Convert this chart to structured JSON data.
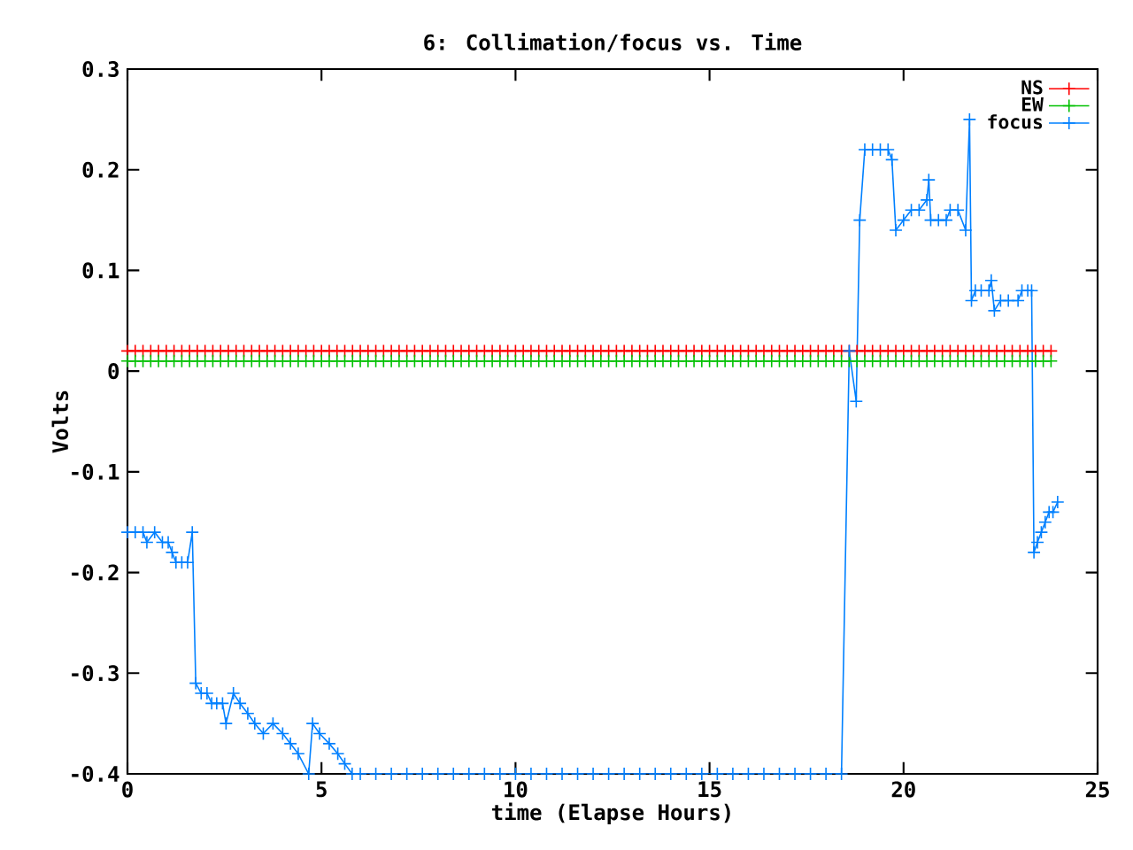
{
  "chart_data": {
    "type": "line",
    "title": "6: Collimation/focus vs. Time",
    "xlabel": "time (Elapse Hours)",
    "ylabel": "Volts",
    "xlim": [
      0,
      25
    ],
    "ylim": [
      -0.4,
      0.3
    ],
    "xticks": [
      0,
      5,
      10,
      15,
      20,
      25
    ],
    "yticks": [
      -0.4,
      -0.3,
      -0.2,
      -0.1,
      0,
      0.1,
      0.2,
      0.3
    ],
    "legend": "top right",
    "line_style": "solid",
    "series": [
      {
        "name": "NS",
        "color": "#ff0000",
        "marker": "cross",
        "x": [
          0,
          0.2,
          0.4,
          0.6,
          0.8,
          1,
          1.2,
          1.4,
          1.6,
          1.8,
          2,
          2.2,
          2.4,
          2.6,
          2.8,
          3,
          3.2,
          3.4,
          3.6,
          3.8,
          4,
          4.2,
          4.4,
          4.6,
          4.8,
          5,
          5.2,
          5.4,
          5.6,
          5.8,
          6,
          6.2,
          6.4,
          6.6,
          6.8,
          7,
          7.2,
          7.4,
          7.6,
          7.8,
          8,
          8.2,
          8.4,
          8.6,
          8.8,
          9,
          9.2,
          9.4,
          9.6,
          9.8,
          10,
          10.2,
          10.4,
          10.6,
          10.8,
          11,
          11.2,
          11.4,
          11.6,
          11.8,
          12,
          12.2,
          12.4,
          12.6,
          12.8,
          13,
          13.2,
          13.4,
          13.6,
          13.8,
          14,
          14.2,
          14.4,
          14.6,
          14.8,
          15,
          15.2,
          15.4,
          15.6,
          15.8,
          16,
          16.2,
          16.4,
          16.6,
          16.8,
          17,
          17.2,
          17.4,
          17.6,
          17.8,
          18,
          18.2,
          18.4,
          18.6,
          18.8,
          19,
          19.2,
          19.4,
          19.6,
          19.8,
          20,
          20.2,
          20.4,
          20.6,
          20.8,
          21,
          21.2,
          21.4,
          21.6,
          21.8,
          22,
          22.2,
          22.4,
          22.6,
          22.8,
          23,
          23.2,
          23.4,
          23.6,
          23.8
        ],
        "values": [
          0.02,
          0.02,
          0.02,
          0.02,
          0.02,
          0.02,
          0.02,
          0.02,
          0.02,
          0.02,
          0.02,
          0.02,
          0.02,
          0.02,
          0.02,
          0.02,
          0.02,
          0.02,
          0.02,
          0.02,
          0.02,
          0.02,
          0.02,
          0.02,
          0.02,
          0.02,
          0.02,
          0.02,
          0.02,
          0.02,
          0.02,
          0.02,
          0.02,
          0.02,
          0.02,
          0.02,
          0.02,
          0.02,
          0.02,
          0.02,
          0.02,
          0.02,
          0.02,
          0.02,
          0.02,
          0.02,
          0.02,
          0.02,
          0.02,
          0.02,
          0.02,
          0.02,
          0.02,
          0.02,
          0.02,
          0.02,
          0.02,
          0.02,
          0.02,
          0.02,
          0.02,
          0.02,
          0.02,
          0.02,
          0.02,
          0.02,
          0.02,
          0.02,
          0.02,
          0.02,
          0.02,
          0.02,
          0.02,
          0.02,
          0.02,
          0.02,
          0.02,
          0.02,
          0.02,
          0.02,
          0.02,
          0.02,
          0.02,
          0.02,
          0.02,
          0.02,
          0.02,
          0.02,
          0.02,
          0.02,
          0.02,
          0.02,
          0.02,
          0.02,
          0.02,
          0.02,
          0.02,
          0.02,
          0.02,
          0.02,
          0.02,
          0.02,
          0.02,
          0.02,
          0.02,
          0.02,
          0.02,
          0.02,
          0.02,
          0.02,
          0.02,
          0.02,
          0.02,
          0.02,
          0.02,
          0.02,
          0.02,
          0.02,
          0.02,
          0.02
        ]
      },
      {
        "name": "EW",
        "color": "#00c000",
        "marker": "cross",
        "x": [
          0,
          0.2,
          0.4,
          0.6,
          0.8,
          1,
          1.2,
          1.4,
          1.6,
          1.8,
          2,
          2.2,
          2.4,
          2.6,
          2.8,
          3,
          3.2,
          3.4,
          3.6,
          3.8,
          4,
          4.2,
          4.4,
          4.6,
          4.8,
          5,
          5.2,
          5.4,
          5.6,
          5.8,
          6,
          6.2,
          6.4,
          6.6,
          6.8,
          7,
          7.2,
          7.4,
          7.6,
          7.8,
          8,
          8.2,
          8.4,
          8.6,
          8.8,
          9,
          9.2,
          9.4,
          9.6,
          9.8,
          10,
          10.2,
          10.4,
          10.6,
          10.8,
          11,
          11.2,
          11.4,
          11.6,
          11.8,
          12,
          12.2,
          12.4,
          12.6,
          12.8,
          13,
          13.2,
          13.4,
          13.6,
          13.8,
          14,
          14.2,
          14.4,
          14.6,
          14.8,
          15,
          15.2,
          15.4,
          15.6,
          15.8,
          16,
          16.2,
          16.4,
          16.6,
          16.8,
          17,
          17.2,
          17.4,
          17.6,
          17.8,
          18,
          18.2,
          18.4,
          18.6,
          18.8,
          19,
          19.2,
          19.4,
          19.6,
          19.8,
          20,
          20.2,
          20.4,
          20.6,
          20.8,
          21,
          21.2,
          21.4,
          21.6,
          21.8,
          22,
          22.2,
          22.4,
          22.6,
          22.8,
          23,
          23.2,
          23.4,
          23.6,
          23.8
        ],
        "values": [
          0.01,
          0.01,
          0.01,
          0.01,
          0.01,
          0.01,
          0.01,
          0.01,
          0.01,
          0.01,
          0.01,
          0.01,
          0.01,
          0.01,
          0.01,
          0.01,
          0.01,
          0.01,
          0.01,
          0.01,
          0.01,
          0.01,
          0.01,
          0.01,
          0.01,
          0.01,
          0.01,
          0.01,
          0.01,
          0.01,
          0.01,
          0.01,
          0.01,
          0.01,
          0.01,
          0.01,
          0.01,
          0.01,
          0.01,
          0.01,
          0.01,
          0.01,
          0.01,
          0.01,
          0.01,
          0.01,
          0.01,
          0.01,
          0.01,
          0.01,
          0.01,
          0.01,
          0.01,
          0.01,
          0.01,
          0.01,
          0.01,
          0.01,
          0.01,
          0.01,
          0.01,
          0.01,
          0.01,
          0.01,
          0.01,
          0.01,
          0.01,
          0.01,
          0.01,
          0.01,
          0.01,
          0.01,
          0.01,
          0.01,
          0.01,
          0.01,
          0.01,
          0.01,
          0.01,
          0.01,
          0.01,
          0.01,
          0.01,
          0.01,
          0.01,
          0.01,
          0.01,
          0.01,
          0.01,
          0.01,
          0.01,
          0.01,
          0.01,
          0.01,
          0.01,
          0.01,
          0.01,
          0.01,
          0.01,
          0.01,
          0.01,
          0.01,
          0.01,
          0.01,
          0.01,
          0.01,
          0.01,
          0.01,
          0.01,
          0.01,
          0.01,
          0.01,
          0.01,
          0.01,
          0.01,
          0.01,
          0.01,
          0.01,
          0.01,
          0.01
        ]
      },
      {
        "name": "focus",
        "color": "#0080ff",
        "marker": "cross",
        "x": [
          0,
          0.2,
          0.4,
          0.5,
          0.7,
          0.9,
          1.05,
          1.15,
          1.25,
          1.4,
          1.55,
          1.67,
          1.76,
          1.9,
          2.05,
          2.17,
          2.3,
          2.45,
          2.54,
          2.73,
          2.9,
          3.1,
          3.28,
          3.5,
          3.75,
          4,
          4.2,
          4.4,
          4.67,
          4.77,
          4.95,
          5.2,
          5.42,
          5.6,
          5.79,
          6,
          6.4,
          6.8,
          7.2,
          7.6,
          8,
          8.4,
          8.8,
          9.2,
          9.6,
          10,
          10.4,
          10.8,
          11.2,
          11.6,
          12,
          12.4,
          12.8,
          13.2,
          13.6,
          14,
          14.4,
          14.8,
          15.2,
          15.6,
          16,
          16.4,
          16.8,
          17.2,
          17.6,
          18,
          18.4,
          18.6,
          18.78,
          18.87,
          19,
          19.2,
          19.4,
          19.6,
          19.7,
          19.8,
          20,
          20.2,
          20.4,
          20.6,
          20.65,
          20.7,
          20.9,
          21.1,
          21.2,
          21.4,
          21.6,
          21.7,
          21.75,
          21.85,
          22,
          22.2,
          22.26,
          22.34,
          22.5,
          22.7,
          22.95,
          23.05,
          23.2,
          23.3,
          23.36,
          23.45,
          23.55,
          23.65,
          23.75,
          23.85,
          23.97
        ],
        "values": [
          -0.16,
          -0.16,
          -0.16,
          -0.17,
          -0.16,
          -0.17,
          -0.17,
          -0.18,
          -0.19,
          -0.19,
          -0.19,
          -0.16,
          -0.31,
          -0.32,
          -0.32,
          -0.33,
          -0.33,
          -0.33,
          -0.35,
          -0.32,
          -0.33,
          -0.34,
          -0.35,
          -0.36,
          -0.35,
          -0.36,
          -0.37,
          -0.38,
          -0.4,
          -0.35,
          -0.36,
          -0.37,
          -0.38,
          -0.39,
          -0.4,
          -0.4,
          -0.4,
          -0.4,
          -0.4,
          -0.4,
          -0.4,
          -0.4,
          -0.4,
          -0.4,
          -0.4,
          -0.4,
          -0.4,
          -0.4,
          -0.4,
          -0.4,
          -0.4,
          -0.4,
          -0.4,
          -0.4,
          -0.4,
          -0.4,
          -0.4,
          -0.4,
          -0.4,
          -0.4,
          -0.4,
          -0.4,
          -0.4,
          -0.4,
          -0.4,
          -0.4,
          -0.4,
          0.02,
          -0.03,
          0.15,
          0.22,
          0.22,
          0.22,
          0.22,
          0.21,
          0.14,
          0.15,
          0.16,
          0.16,
          0.17,
          0.19,
          0.15,
          0.15,
          0.15,
          0.16,
          0.16,
          0.14,
          0.25,
          0.07,
          0.08,
          0.08,
          0.08,
          0.09,
          0.06,
          0.07,
          0.07,
          0.07,
          0.08,
          0.08,
          0.08,
          -0.18,
          -0.17,
          -0.16,
          -0.15,
          -0.14,
          -0.14,
          -0.13
        ]
      }
    ]
  }
}
